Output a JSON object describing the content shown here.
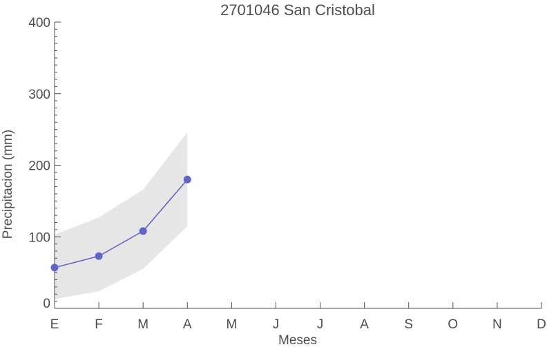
{
  "chart_data": {
    "type": "line",
    "title": "2701046 San Cristobal",
    "xlabel": "Meses",
    "ylabel": "Precipitacion (mm)",
    "categories": [
      "E",
      "F",
      "M",
      "A",
      "M",
      "J",
      "J",
      "A",
      "S",
      "O",
      "N",
      "D"
    ],
    "ylim": [
      0,
      400
    ],
    "yticks": [
      "0",
      "100",
      "200",
      "300",
      "400"
    ],
    "grid": false,
    "series": [
      {
        "values": [
          57,
          73,
          108,
          180,
          null,
          null,
          null,
          null,
          null,
          null,
          null,
          null
        ]
      }
    ],
    "band": {
      "lower": [
        13,
        24,
        55,
        115,
        null,
        null,
        null,
        null,
        null,
        null,
        null,
        null
      ],
      "upper": [
        103,
        127,
        166,
        246,
        null,
        null,
        null,
        null,
        null,
        null,
        null,
        null
      ]
    },
    "colors": {
      "line": "#6464c8",
      "band": "#e6e6e6",
      "axis": "#4d4d4d"
    }
  }
}
